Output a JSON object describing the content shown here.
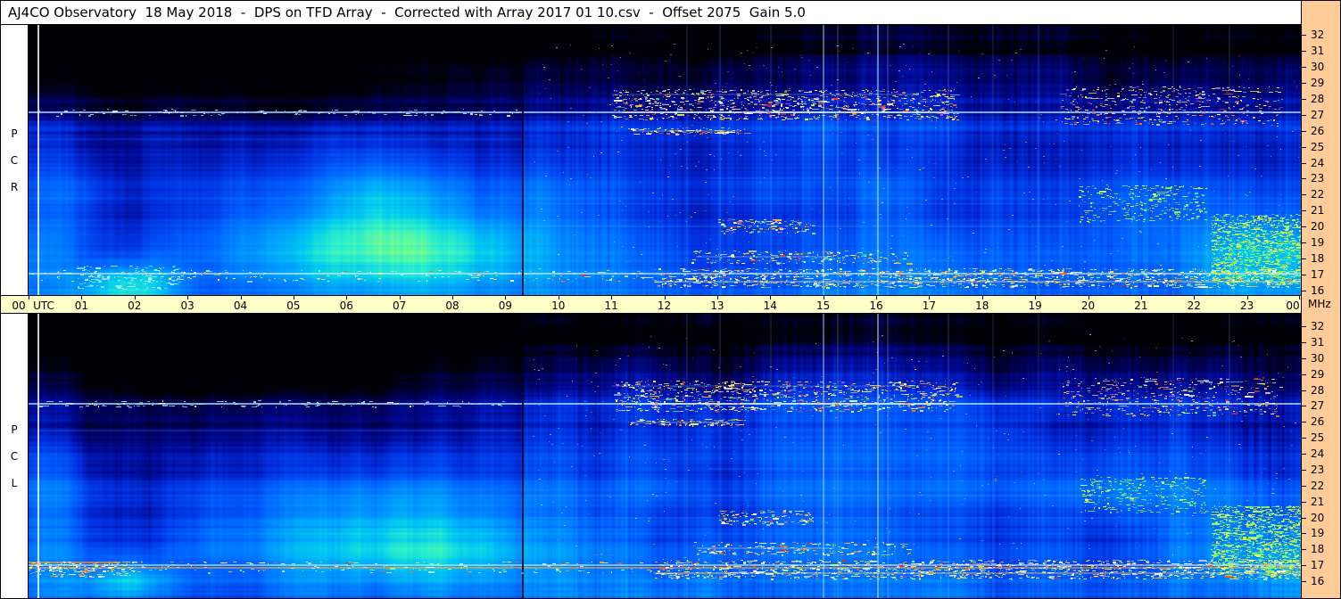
{
  "header": {
    "title": "AJ4CO Observatory  18 May 2018  -  DPS on TFD Array  -  Corrected with Array 2017 01 10.csv  -  Offset 2075  Gain 5.0"
  },
  "colors": {
    "time_bar_bg": "#ffffc8",
    "freq_bar_bg": "#ffcc99",
    "label_strip_bg": "#ffffff",
    "border": "#000000"
  },
  "time_axis": {
    "unit_label": "UTC",
    "right_unit_label": "MHz",
    "hours": [
      "00",
      "01",
      "02",
      "03",
      "04",
      "05",
      "06",
      "07",
      "08",
      "09",
      "10",
      "11",
      "12",
      "13",
      "14",
      "15",
      "16",
      "17",
      "18",
      "19",
      "20",
      "21",
      "22",
      "23",
      "00"
    ]
  },
  "freq_axis": {
    "ticks": [
      "32",
      "31",
      "30",
      "29",
      "28",
      "27",
      "26",
      "25",
      "24",
      "23",
      "22",
      "21",
      "20",
      "19",
      "18",
      "17",
      "16"
    ]
  },
  "panels": [
    {
      "id": "rcp",
      "strip_id": "rcp-strip",
      "label": "RCP",
      "label_letters": [
        "P",
        "C",
        "R"
      ]
    },
    {
      "id": "lcp",
      "strip_id": "lcp-strip",
      "label": "LCP",
      "label_letters": [
        "P",
        "C",
        "L"
      ]
    }
  ],
  "chart_data": {
    "type": "heatmap",
    "title": "AJ4CO Observatory dynamic spectrum, DPS on TFD Array",
    "date": "18 May 2018",
    "instrument": "DPS on TFD Array",
    "correction_file": "Array 2017 01 10.csv",
    "offset": 2075,
    "gain": 5.0,
    "x_axis": {
      "label": "UTC",
      "unit": "hours",
      "min": 0,
      "max": 24,
      "tick_labels": [
        "00",
        "01",
        "02",
        "03",
        "04",
        "05",
        "06",
        "07",
        "08",
        "09",
        "10",
        "11",
        "12",
        "13",
        "14",
        "15",
        "16",
        "17",
        "18",
        "19",
        "20",
        "21",
        "22",
        "23",
        "00"
      ]
    },
    "y_axis": {
      "label": "MHz",
      "min": 16,
      "max": 32,
      "tick_labels": [
        "32",
        "31",
        "30",
        "29",
        "28",
        "27",
        "26",
        "25",
        "24",
        "23",
        "22",
        "21",
        "20",
        "19",
        "18",
        "17",
        "16"
      ]
    },
    "panels": [
      {
        "name": "RCP",
        "description": "Right circular polarization, 16-32 MHz over 24 h"
      },
      {
        "name": "LCP",
        "description": "Left circular polarization, 16-32 MHz over 24 h"
      }
    ],
    "notable_features": [
      "Broad bright cyan emission ~16-24 MHz between ~04:00 and ~09:30 UTC",
      "Persistent narrowband RFI line near 27.1 MHz across all 24 h",
      "Dense colorful RFI speckle 16-17.5 MHz, strongest 12:00-24:00 UTC",
      "Very dark low-signal region above ~28 MHz, especially 00:00-09:00 UTC",
      "Vertical broadband burst columns near 15:00 and 16:00 UTC",
      "White vertical calibration line near 00:10 UTC and dark gap near 09:20 UTC",
      "Yellow-green enhanced noise 16-21 MHz after ~22:20 UTC",
      "Speckled RFI patch 26.5-28.6 MHz from ~11:00-17:30 and ~19:30-23:30 UTC"
    ],
    "render": {
      "base_level": 0.3,
      "colormap": [
        [
          0.0,
          "#000006"
        ],
        [
          0.1,
          "#00004e"
        ],
        [
          0.2,
          "#000a96"
        ],
        [
          0.3,
          "#0030e0"
        ],
        [
          0.42,
          "#0064ff"
        ],
        [
          0.54,
          "#0096ff"
        ],
        [
          0.65,
          "#00c8f0"
        ],
        [
          0.75,
          "#30f0c8"
        ],
        [
          0.83,
          "#80ff80"
        ],
        [
          0.9,
          "#e0ff40"
        ],
        [
          0.96,
          "#ffff60"
        ],
        [
          1.0,
          "#ffffff"
        ]
      ],
      "palettes": {
        "rfi": [
          "#ffffff",
          "#ffff40",
          "#ffc020",
          "#ff7020",
          "#ff3020",
          "#40ff90",
          "#ff50ff",
          "#80d0ff"
        ],
        "warm": [
          "#ffffff",
          "#ffff40",
          "#ffb020",
          "#ff6010",
          "#ff2010"
        ],
        "green": [
          "#d0ff40",
          "#90ff40",
          "#ffff50",
          "#50ffa0",
          "#c8ff90"
        ],
        "cool": [
          "#b0f0ff",
          "#80ffe0",
          "#ffffff"
        ]
      },
      "shared": {
        "hlines": [
          {
            "f": 27.15,
            "t0": 0,
            "t1": 24,
            "w": 2,
            "c": "#b8ecff",
            "a": 0.7
          },
          {
            "f": 27.15,
            "t0": 11.2,
            "t1": 17.3,
            "w": 2,
            "c": "#ffffff",
            "a": 0.45
          },
          {
            "f": 28.25,
            "t0": 11.0,
            "t1": 16.8,
            "w": 1,
            "c": "#7cc8ff",
            "a": 0.45
          },
          {
            "f": 26.0,
            "t0": 11.4,
            "t1": 13.4,
            "w": 1,
            "c": "#8cd4ff",
            "a": 0.55
          },
          {
            "f": 25.45,
            "t0": 0.2,
            "t1": 9.3,
            "w": 1,
            "c": "#2a6cf0",
            "a": 0.5
          },
          {
            "f": 21.4,
            "t0": 9.4,
            "t1": 24,
            "w": 1,
            "c": "#55aaff",
            "a": 0.3
          },
          {
            "f": 20.0,
            "t0": 9.4,
            "t1": 24,
            "w": 1,
            "c": "#55aaff",
            "a": 0.35
          },
          {
            "f": 23.05,
            "t0": 12.8,
            "t1": 16.6,
            "w": 1,
            "c": "#55aaff",
            "a": 0.25
          },
          {
            "f": 17.05,
            "t0": 0,
            "t1": 24,
            "w": 2,
            "c": "#d8f4ff",
            "a": 0.6
          },
          {
            "f": 16.55,
            "t0": 11.8,
            "t1": 24,
            "w": 2,
            "c": "#ffd070",
            "a": 0.4
          },
          {
            "f": 18.1,
            "t0": 12.6,
            "t1": 15.2,
            "w": 1,
            "c": "#e8f8ff",
            "a": 0.45
          }
        ],
        "vlines": [
          {
            "t": 0.18,
            "w": 2,
            "c": "#ffffff",
            "a": 0.8
          },
          {
            "t": 9.33,
            "w": 2,
            "c": "#000014",
            "a": 0.85
          },
          {
            "t": 10.7,
            "w": 1,
            "c": "#000a50",
            "a": 0.25
          },
          {
            "t": 11.5,
            "w": 1,
            "c": "#000a50",
            "a": 0.2
          },
          {
            "t": 12.42,
            "w": 1,
            "c": "#7cc8ff",
            "a": 0.25
          },
          {
            "t": 13.05,
            "w": 1,
            "c": "#7cc8ff",
            "a": 0.3
          },
          {
            "t": 14.0,
            "w": 1,
            "c": "#7cc8ff",
            "a": 0.25
          },
          {
            "t": 15.0,
            "w": 2,
            "c": "#b0e8ff",
            "a": 0.45
          },
          {
            "t": 15.27,
            "w": 1,
            "c": "#9adcff",
            "a": 0.35
          },
          {
            "t": 16.02,
            "w": 2,
            "c": "#c6f2ff",
            "a": 0.5
          },
          {
            "t": 16.2,
            "w": 1,
            "c": "#a8e4ff",
            "a": 0.35
          },
          {
            "t": 17.35,
            "w": 1,
            "c": "#8cd0ff",
            "a": 0.28
          },
          {
            "t": 18.2,
            "w": 1,
            "c": "#7cc8ff",
            "a": 0.22
          },
          {
            "t": 19.05,
            "w": 1,
            "c": "#8cd0ff",
            "a": 0.2
          },
          {
            "t": 21.6,
            "w": 1,
            "c": "#7cc8ff",
            "a": 0.18
          },
          {
            "t": 22.65,
            "w": 1,
            "c": "#9adcff",
            "a": 0.22
          }
        ],
        "bands": [
          {
            "t0": 11,
            "t1": 17.5,
            "f0": 26.7,
            "f1": 28.6,
            "n": 900,
            "p": "rfi"
          },
          {
            "t0": 19.4,
            "t1": 23.6,
            "f0": 26.4,
            "f1": 28.8,
            "n": 450,
            "p": "rfi"
          },
          {
            "t0": 11.8,
            "t1": 24,
            "f0": 16.2,
            "f1": 17.4,
            "n": 1300,
            "p": "warm"
          },
          {
            "t0": 0,
            "t1": 11.8,
            "f0": 16.6,
            "f1": 17.3,
            "n": 220,
            "p": "warm"
          },
          {
            "t0": 22.3,
            "t1": 24,
            "f0": 16.4,
            "f1": 20.8,
            "n": 1100,
            "p": "green"
          },
          {
            "t0": 19.8,
            "t1": 22.2,
            "f0": 20.3,
            "f1": 22.6,
            "n": 300,
            "p": "green"
          },
          {
            "t0": 12.5,
            "t1": 16.6,
            "f0": 17.7,
            "f1": 18.5,
            "n": 220,
            "p": "rfi"
          },
          {
            "t0": 13,
            "t1": 14.8,
            "f0": 19.6,
            "f1": 20.5,
            "n": 140,
            "p": "rfi"
          },
          {
            "t0": 9.5,
            "t1": 24,
            "f0": 16.5,
            "f1": 31.5,
            "n": 500,
            "p": "rfi",
            "small": true
          },
          {
            "t0": 0.2,
            "t1": 9.3,
            "f0": 26.95,
            "f1": 27.35,
            "n": 130,
            "p": "cool"
          },
          {
            "t0": 11.3,
            "t1": 13.5,
            "f0": 25.8,
            "f1": 26.2,
            "n": 110,
            "p": "rfi"
          }
        ]
      },
      "panels": [
        {
          "seed": 101,
          "fTop": 32.61,
          "fBottom": 15.72,
          "blobs": [
            {
              "t": 6.7,
              "f": 19.8,
              "st": 2.4,
              "sf": 3.0,
              "amp": 0.4
            },
            {
              "t": 7.4,
              "f": 18.2,
              "st": 1.5,
              "sf": 1.5,
              "amp": 0.13
            },
            {
              "t": 0.35,
              "f": 20.5,
              "st": 0.5,
              "sf": 5.0,
              "amp": 0.2
            },
            {
              "t": 1.9,
              "f": 16.2,
              "st": 0.65,
              "sf": 1.0,
              "amp": 0.4
            },
            {
              "t": 23.4,
              "f": 18.2,
              "st": 1.1,
              "sf": 2.4,
              "amp": 0.24
            },
            {
              "t": 15.7,
              "f": 23.0,
              "st": 1.2,
              "sf": 9.0,
              "amp": 0.09
            },
            {
              "t": 20.9,
              "f": 21.4,
              "st": 1.2,
              "sf": 1.5,
              "amp": 0.12
            },
            {
              "t": 3.6,
              "f": 30.2,
              "st": 3.2,
              "sf": 2.3,
              "amp": -0.16
            },
            {
              "t": 11.9,
              "f": 30.8,
              "st": 1.6,
              "sf": 1.8,
              "amp": -0.08
            },
            {
              "t": 5.0,
              "f": 26.8,
              "st": 3.0,
              "sf": 1.4,
              "amp": -0.06
            },
            {
              "t": 21.0,
              "f": 30.5,
              "st": 2.5,
              "sf": 1.6,
              "amp": -0.06
            }
          ],
          "hlines": [],
          "vlines": [],
          "bands": [
            {
              "t0": 0.9,
              "t1": 2.9,
              "f0": 16.1,
              "f1": 17.6,
              "n": 160,
              "p": "cool"
            }
          ]
        },
        {
          "seed": 202,
          "fTop": 32.78,
          "fBottom": 14.99,
          "blobs": [
            {
              "t": 6.9,
              "f": 19.2,
              "st": 2.3,
              "sf": 2.6,
              "amp": 0.38
            },
            {
              "t": 7.6,
              "f": 17.8,
              "st": 1.5,
              "sf": 1.4,
              "amp": 0.12
            },
            {
              "t": 0.35,
              "f": 20.0,
              "st": 0.5,
              "sf": 5.0,
              "amp": 0.22
            },
            {
              "t": 1.9,
              "f": 16.0,
              "st": 0.6,
              "sf": 0.9,
              "amp": 0.3
            },
            {
              "t": 23.4,
              "f": 18.2,
              "st": 1.1,
              "sf": 2.4,
              "amp": 0.22
            },
            {
              "t": 15.7,
              "f": 23.0,
              "st": 1.2,
              "sf": 9.0,
              "amp": 0.09
            },
            {
              "t": 20.9,
              "f": 21.4,
              "st": 1.2,
              "sf": 1.5,
              "amp": 0.1
            },
            {
              "t": 3.4,
              "f": 30.0,
              "st": 3.2,
              "sf": 2.5,
              "amp": -0.18
            },
            {
              "t": 2.4,
              "f": 25.0,
              "st": 2.2,
              "sf": 3.0,
              "amp": -0.07
            },
            {
              "t": 11.9,
              "f": 30.8,
              "st": 1.6,
              "sf": 1.8,
              "amp": -0.08
            },
            {
              "t": 21.0,
              "f": 30.5,
              "st": 2.5,
              "sf": 1.6,
              "amp": -0.06
            }
          ],
          "hlines": [
            {
              "f": 16.9,
              "t0": 0,
              "t1": 24,
              "w": 2,
              "c": "#ffb050",
              "a": 0.5
            },
            {
              "f": 17.2,
              "t0": 0,
              "t1": 1.6,
              "w": 2,
              "c": "#ff9840",
              "a": 0.65
            }
          ],
          "vlines": [],
          "bands": [
            {
              "t0": 0,
              "t1": 2,
              "f0": 16.3,
              "f1": 17.3,
              "n": 160,
              "p": "warm"
            }
          ]
        }
      ]
    }
  }
}
